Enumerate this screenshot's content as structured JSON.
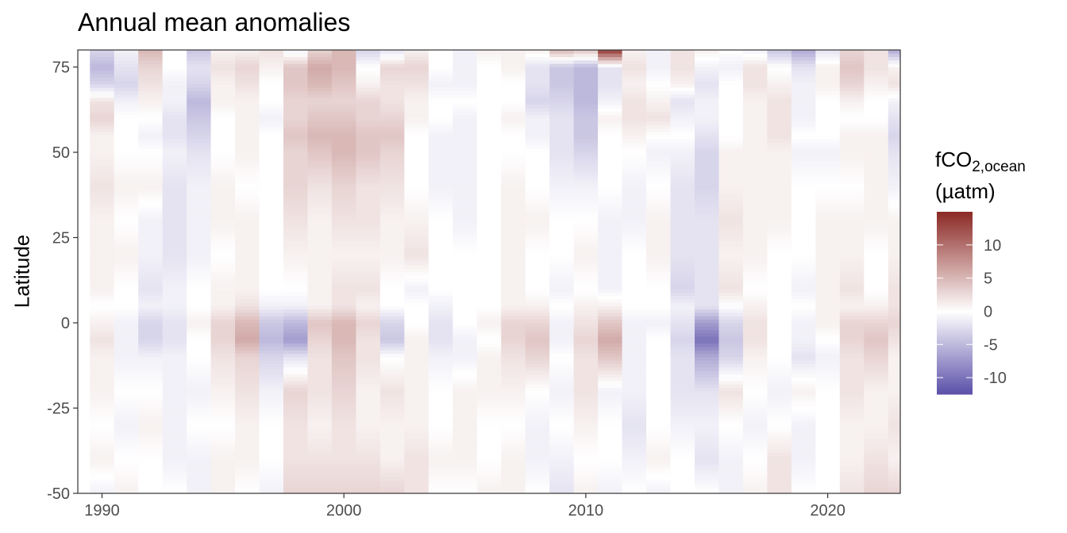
{
  "chart_data": {
    "type": "heatmap",
    "title": "Annual mean anomalies",
    "xlabel": "",
    "ylabel": "Latitude",
    "x_ticks": [
      1990,
      2000,
      2010,
      2020
    ],
    "y_ticks": [
      75,
      50,
      25,
      0,
      -25,
      -50
    ],
    "xlim": [
      1989,
      2023
    ],
    "ylim": [
      -50,
      80
    ],
    "years": [
      1990,
      1991,
      1992,
      1993,
      1994,
      1995,
      1996,
      1997,
      1998,
      1999,
      2000,
      2001,
      2002,
      2003,
      2004,
      2005,
      2006,
      2007,
      2008,
      2009,
      2010,
      2011,
      2012,
      2013,
      2014,
      2015,
      2016,
      2017,
      2018,
      2019,
      2020,
      2021,
      2022,
      2023
    ],
    "latitudes": [
      -50,
      -40,
      -30,
      -20,
      -10,
      -5,
      0,
      5,
      10,
      20,
      30,
      40,
      50,
      55,
      60,
      65,
      70,
      75,
      80
    ],
    "anomalies": [
      [
        -1,
        1,
        0,
        0,
        -1,
        1,
        0,
        -1,
        3,
        3,
        3,
        3,
        3,
        2,
        0,
        0,
        1,
        1,
        0,
        -2,
        1,
        -1,
        0,
        -1,
        0,
        0,
        -1,
        1,
        2,
        0,
        0,
        2,
        3,
        3
      ],
      [
        1,
        0,
        0,
        -1,
        -1,
        1,
        1,
        0,
        2,
        2,
        2,
        2,
        1,
        2,
        1,
        1,
        0,
        1,
        -1,
        -1,
        0,
        0,
        -1,
        1,
        0,
        -2,
        -1,
        0,
        2,
        -1,
        0,
        1,
        2,
        1
      ],
      [
        0,
        -1,
        1,
        -1,
        0,
        0,
        1,
        0,
        2,
        1,
        2,
        1,
        1,
        1,
        0,
        1,
        0,
        0,
        -1,
        0,
        1,
        0,
        -2,
        0,
        -1,
        -1,
        0,
        -1,
        0,
        -1,
        0,
        1,
        1,
        2
      ],
      [
        1,
        0,
        0,
        -1,
        -1,
        1,
        2,
        -1,
        3,
        2,
        3,
        1,
        2,
        1,
        0,
        1,
        1,
        1,
        0,
        -1,
        2,
        -1,
        -1,
        0,
        -2,
        -2,
        2,
        0,
        -1,
        1,
        0,
        2,
        1,
        1
      ],
      [
        1,
        -1,
        -1,
        -1,
        0,
        2,
        3,
        -3,
        -2,
        2,
        4,
        2,
        0,
        1,
        -1,
        -1,
        1,
        2,
        3,
        0,
        2,
        4,
        -1,
        0,
        -2,
        -6,
        -3,
        1,
        0,
        -2,
        -1,
        2,
        3,
        1
      ],
      [
        2,
        -1,
        -3,
        -2,
        0,
        3,
        6,
        -5,
        -7,
        3,
        5,
        2,
        -4,
        1,
        -2,
        -1,
        0,
        3,
        4,
        -1,
        3,
        6,
        -1,
        0,
        -3,
        -10,
        -4,
        2,
        0,
        -1,
        0,
        3,
        4,
        2
      ],
      [
        1,
        -1,
        -3,
        -2,
        1,
        3,
        5,
        -4,
        -5,
        4,
        5,
        3,
        -3,
        0,
        -2,
        0,
        1,
        3,
        3,
        -1,
        2,
        4,
        -1,
        -1,
        -2,
        -7,
        -3,
        2,
        0,
        -1,
        1,
        3,
        3,
        3
      ],
      [
        0,
        0,
        -1,
        -1,
        0,
        1,
        2,
        -1,
        -1,
        1,
        2,
        1,
        0,
        0,
        -1,
        0,
        0,
        1,
        1,
        0,
        1,
        1,
        0,
        0,
        -1,
        -2,
        0,
        1,
        0,
        0,
        1,
        1,
        1,
        2
      ],
      [
        1,
        0,
        -2,
        -1,
        0,
        1,
        1,
        0,
        0,
        1,
        2,
        2,
        0,
        -1,
        0,
        0,
        0,
        1,
        0,
        -1,
        0,
        -1,
        0,
        0,
        -3,
        -2,
        2,
        0,
        0,
        -1,
        1,
        2,
        0,
        2
      ],
      [
        1,
        1,
        -1,
        -2,
        -1,
        0,
        1,
        0,
        1,
        1,
        1,
        1,
        1,
        2,
        0,
        0,
        0,
        1,
        0,
        0,
        1,
        -1,
        0,
        1,
        -2,
        -2,
        1,
        1,
        0,
        0,
        1,
        1,
        0,
        1
      ],
      [
        1,
        0,
        -1,
        -2,
        -1,
        1,
        1,
        0,
        2,
        1,
        2,
        2,
        1,
        1,
        0,
        -1,
        0,
        1,
        1,
        0,
        0,
        -1,
        -1,
        1,
        -2,
        -2,
        2,
        1,
        1,
        0,
        1,
        1,
        1,
        1
      ],
      [
        2,
        1,
        1,
        -2,
        -1,
        1,
        0,
        0,
        3,
        2,
        3,
        2,
        2,
        0,
        -1,
        -1,
        0,
        1,
        0,
        -1,
        -1,
        0,
        -1,
        0,
        -2,
        -3,
        1,
        1,
        1,
        0,
        0,
        0,
        1,
        -1
      ],
      [
        1,
        0,
        0,
        -1,
        -2,
        0,
        1,
        0,
        3,
        4,
        5,
        4,
        3,
        0,
        -1,
        -1,
        0,
        0,
        0,
        -2,
        -3,
        0,
        0,
        -1,
        -1,
        -3,
        1,
        1,
        1,
        -1,
        -1,
        1,
        1,
        -2
      ],
      [
        1,
        0,
        -1,
        -2,
        -3,
        0,
        1,
        0,
        4,
        5,
        5,
        4,
        4,
        0,
        -1,
        -1,
        0,
        0,
        -1,
        -2,
        -4,
        0,
        1,
        0,
        0,
        -2,
        0,
        1,
        2,
        0,
        0,
        1,
        1,
        -3
      ],
      [
        3,
        0,
        0,
        -2,
        -4,
        0,
        1,
        -1,
        3,
        4,
        4,
        3,
        3,
        1,
        0,
        -1,
        0,
        1,
        -1,
        -2,
        -4,
        1,
        2,
        2,
        -1,
        -1,
        0,
        1,
        2,
        -1,
        0,
        0,
        0,
        -2
      ],
      [
        2,
        -1,
        1,
        -1,
        -5,
        1,
        1,
        0,
        3,
        3,
        3,
        3,
        2,
        1,
        0,
        0,
        0,
        0,
        -3,
        -3,
        -5,
        -1,
        2,
        1,
        -2,
        -1,
        0,
        1,
        2,
        -1,
        0,
        1,
        0,
        -1
      ],
      [
        -3,
        -3,
        2,
        -1,
        -3,
        1,
        2,
        0,
        4,
        5,
        4,
        1,
        2,
        2,
        -1,
        -1,
        0,
        0,
        -2,
        -4,
        -5,
        -2,
        1,
        0,
        1,
        -2,
        0,
        2,
        1,
        -1,
        1,
        3,
        1,
        2
      ],
      [
        -5,
        -2,
        3,
        0,
        -2,
        2,
        3,
        1,
        4,
        6,
        5,
        0,
        3,
        3,
        0,
        -1,
        0,
        1,
        -2,
        -4,
        -5,
        -2,
        2,
        -1,
        2,
        -1,
        -1,
        2,
        0,
        -2,
        1,
        4,
        2,
        1
      ],
      [
        -3,
        -1,
        5,
        0,
        -4,
        1,
        1,
        2,
        -1,
        3,
        5,
        -3,
        -2,
        1,
        0,
        -1,
        1,
        1,
        1,
        5,
        4,
        14,
        1,
        -1,
        2,
        1,
        0,
        -1,
        -4,
        -6,
        -2,
        3,
        2,
        -6
      ]
    ],
    "colorbar": {
      "title": "fCO",
      "title_subscript": "2,ocean",
      "title_unit": "(µatm)",
      "ticks": [
        10,
        5,
        0,
        -5,
        -10
      ],
      "range": [
        -12.5,
        15
      ],
      "colors": {
        "low": "#5a4fa8",
        "mid": "#ffffff",
        "high": "#8c2a25"
      }
    }
  }
}
